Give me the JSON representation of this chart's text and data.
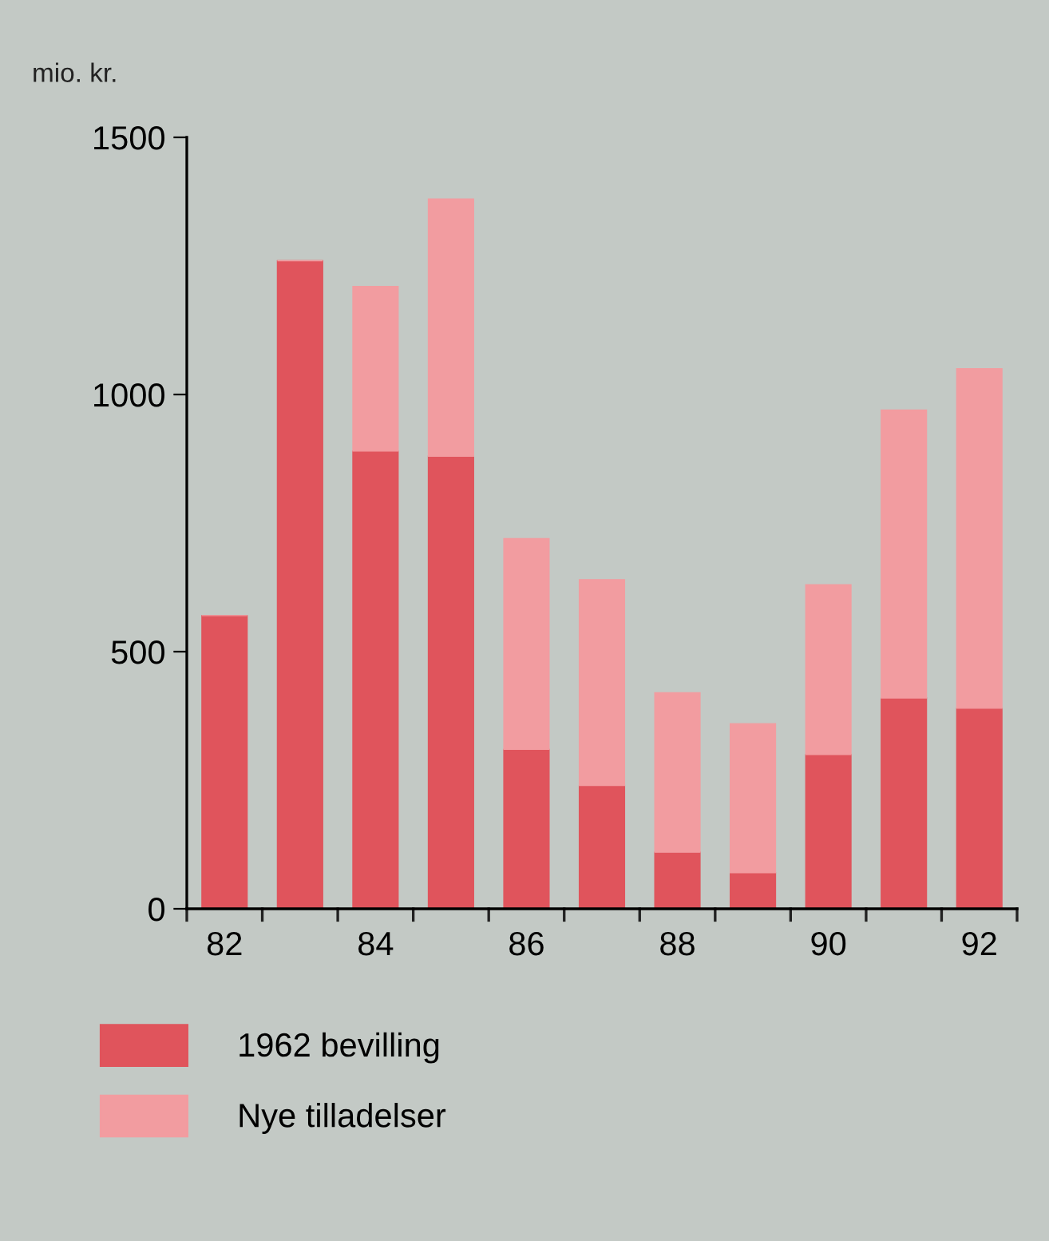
{
  "chart_data": {
    "type": "bar",
    "ylabel": "mio. kr.",
    "stacked": true,
    "categories": [
      "82",
      null,
      "84",
      null,
      "86",
      null,
      "88",
      null,
      "90",
      null,
      "92"
    ],
    "series": [
      {
        "name": "1962 bevilling",
        "color": "#e0545c",
        "values": [
          570,
          1260,
          890,
          880,
          310,
          240,
          110,
          70,
          300,
          410,
          390
        ]
      },
      {
        "name": "Nye tilladelser",
        "color": "#f29ca0",
        "values": [
          0,
          0,
          320,
          500,
          410,
          400,
          310,
          290,
          330,
          560,
          660
        ]
      }
    ],
    "ylim": [
      0,
      1500
    ],
    "yticks": [
      0,
      500,
      1000,
      1500
    ],
    "grid": false,
    "legend": "bottom left"
  }
}
